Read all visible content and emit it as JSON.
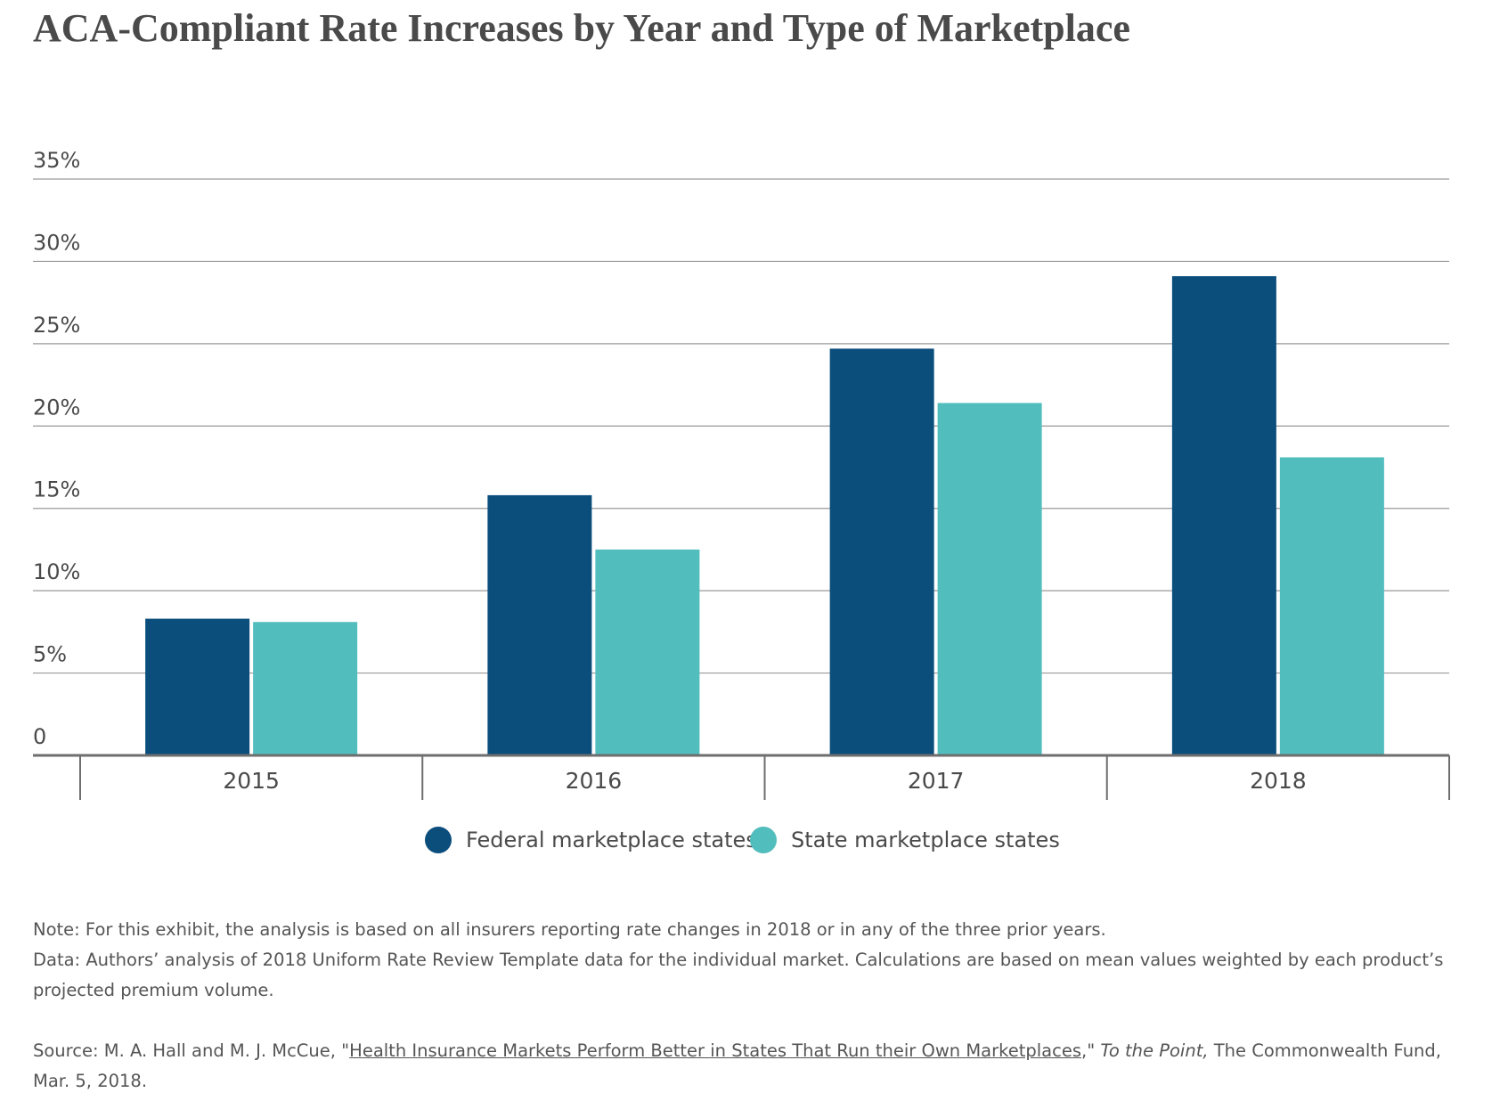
{
  "chart_data": {
    "type": "bar",
    "title": "ACA-Compliant Rate Increases by Year and Type of Marketplace",
    "categories": [
      "2015",
      "2016",
      "2017",
      "2018"
    ],
    "series": [
      {
        "name": "Federal marketplace states",
        "color": "#0b4e7c",
        "values": [
          8.3,
          15.8,
          24.7,
          29.1
        ]
      },
      {
        "name": "State marketplace states",
        "color": "#52bdbd",
        "values": [
          8.1,
          12.5,
          21.4,
          18.1
        ]
      }
    ],
    "yticks": [
      0,
      5,
      10,
      15,
      20,
      25,
      30,
      35
    ],
    "ytick_labels": [
      "0",
      "5%",
      "10%",
      "15%",
      "20%",
      "25%",
      "30%",
      "35%"
    ],
    "ylim": [
      0,
      35
    ],
    "grid": true,
    "legend_position": "bottom-center"
  },
  "notes": {
    "note": "Note: For this exhibit, the analysis is based on all insurers reporting rate changes in 2018 or in any of the three prior years.",
    "data": "Data: Authors’ analysis of 2018 Uniform Rate Review Template data for the individual market. Calculations are based on mean values weighted by each product’s projected premium volume.",
    "source_prefix": "Source: M. A. Hall and M. J. McCue, \"",
    "source_link": "Health Insurance Markets Perform Better in States That Run their Own Marketplaces",
    "source_mid": ",\" ",
    "source_pub": "To the Point,",
    "source_suffix": " The Commonwealth Fund, Mar. 5, 2018."
  }
}
